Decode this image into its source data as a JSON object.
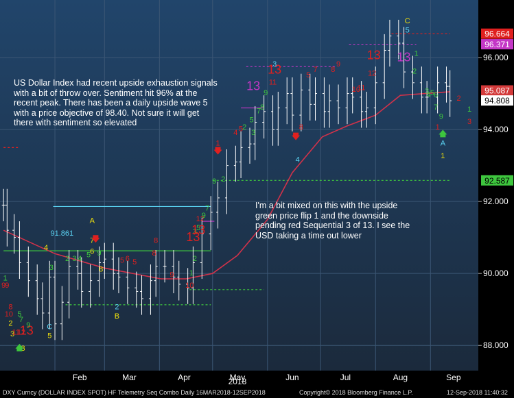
{
  "chart_data": {
    "type": "candlestick",
    "title": "",
    "xlabel": "2018",
    "ylabel": "",
    "ylim": [
      87.3,
      97.6
    ],
    "x_tick_labels": [
      "Feb",
      "Mar",
      "Apr",
      "May",
      "Jun",
      "Jul",
      "Aug",
      "Sep"
    ],
    "y_tick_labels": [
      "88.000",
      "90.000",
      "92.000",
      "94.000",
      "96.000"
    ],
    "y_ticks": [
      88,
      90,
      92,
      94,
      96
    ],
    "colors": {
      "background_top": "#21456b",
      "background_bottom": "#1b2a3c",
      "bars": "#ffffff",
      "moving_average": "#d1324a",
      "grid": "#3b5674"
    },
    "series": [
      {
        "type": "ohlc-bars",
        "x": [
          "2018-01-03",
          "2018-01-05",
          "2018-01-09",
          "2018-01-12",
          "2018-01-17",
          "2018-01-22",
          "2018-01-25",
          "2018-01-29",
          "2018-02-01",
          "2018-02-05",
          "2018-02-09",
          "2018-02-14",
          "2018-02-16",
          "2018-02-21",
          "2018-02-26",
          "2018-03-01",
          "2018-03-06",
          "2018-03-09",
          "2018-03-14",
          "2018-03-19",
          "2018-03-22",
          "2018-03-27",
          "2018-03-30",
          "2018-04-04",
          "2018-04-09",
          "2018-04-12",
          "2018-04-17",
          "2018-04-20",
          "2018-04-25",
          "2018-04-30",
          "2018-05-04",
          "2018-05-09",
          "2018-05-14",
          "2018-05-17",
          "2018-05-22",
          "2018-05-25",
          "2018-05-30",
          "2018-06-04",
          "2018-06-07",
          "2018-06-12",
          "2018-06-15",
          "2018-06-20",
          "2018-06-25",
          "2018-06-28",
          "2018-07-03",
          "2018-07-06",
          "2018-07-11",
          "2018-07-16",
          "2018-07-19",
          "2018-07-24",
          "2018-07-27",
          "2018-08-01",
          "2018-08-06",
          "2018-08-09",
          "2018-08-14",
          "2018-08-17",
          "2018-08-22",
          "2018-08-27",
          "2018-08-30",
          "2018-09-05",
          "2018-09-10",
          "2018-09-12"
        ],
        "close": [
          91.9,
          91.2,
          91.0,
          90.3,
          89.8,
          89.3,
          88.9,
          89.9,
          88.6,
          89.2,
          90.2,
          90.0,
          89.5,
          89.8,
          90.3,
          90.4,
          90.0,
          89.9,
          89.6,
          89.5,
          89.3,
          89.8,
          90.2,
          90.2,
          89.9,
          89.7,
          89.6,
          90.3,
          91.1,
          91.7,
          92.1,
          93.0,
          93.1,
          93.5,
          93.6,
          94.2,
          94.5,
          94.0,
          94.6,
          95.0,
          94.4,
          95.1,
          94.7,
          95.0,
          94.5,
          94.8,
          94.6,
          95.0,
          94.9,
          94.5,
          94.6,
          95.3,
          96.2,
          96.6,
          96.4,
          95.6,
          95.3,
          94.9,
          94.9,
          95.3,
          95.2,
          94.8
        ]
      },
      {
        "name": "",
        "type": "line",
        "x": [
          "2018-01-03",
          "2018-02-01",
          "2018-03-01",
          "2018-04-02",
          "2018-04-16",
          "2018-05-01",
          "2018-05-15",
          "2018-06-01",
          "2018-06-15",
          "2018-07-02",
          "2018-07-16",
          "2018-08-01",
          "2018-08-15",
          "2018-09-12"
        ],
        "values": [
          91.2,
          90.55,
          90.15,
          89.85,
          89.85,
          90.0,
          90.5,
          91.5,
          92.8,
          93.8,
          94.1,
          94.4,
          94.95,
          95.05
        ]
      }
    ],
    "price_labels": [
      {
        "text": "96.664",
        "value": 96.664,
        "bg": "#e0201f",
        "fg": "#ffffff"
      },
      {
        "text": "96.371",
        "value": 96.371,
        "bg": "#c437c6",
        "fg": "#ffffff"
      },
      {
        "text": "95.087",
        "value": 95.087,
        "bg": "#d33a3a",
        "fg": "#ffffff"
      },
      {
        "text": "94.808",
        "value": 94.808,
        "bg": "#ffffff",
        "fg": "#000000"
      },
      {
        "text": "92.587",
        "value": 92.587,
        "bg": "#3ec63e",
        "fg": "#000000"
      }
    ],
    "level_annotations": [
      {
        "text": "91.861",
        "value": 91.861,
        "color": "#5bd3f2"
      }
    ],
    "horizontal_levels": [
      {
        "value": 96.664,
        "from": "2018-08-10",
        "to": "2018-09-12",
        "color": "#e0201f",
        "style": "dashed"
      },
      {
        "value": 96.371,
        "from": "2018-07-17",
        "to": "2018-08-24",
        "color": "#c437c6",
        "style": "dashed"
      },
      {
        "value": 95.75,
        "from": "2018-05-20",
        "to": "2018-07-10",
        "color": "#c437c6",
        "style": "dashed"
      },
      {
        "value": 92.587,
        "from": "2018-05-01",
        "to": "2018-09-12",
        "color": "#3ec63e",
        "style": "dashed"
      },
      {
        "value": 91.861,
        "from": "2018-01-31",
        "to": "2018-04-30",
        "color": "#5bd3f2",
        "style": "solid"
      },
      {
        "value": 91.45,
        "from": "2018-04-25",
        "to": "2018-05-02",
        "color": "#c437c6",
        "style": "solid"
      },
      {
        "value": 90.63,
        "from": "2018-01-03",
        "to": "2018-04-30",
        "color": "#3ec63e",
        "style": "solid"
      },
      {
        "value": 89.55,
        "from": "2018-04-18",
        "to": "2018-05-30",
        "color": "#3ec63e",
        "style": "dashed"
      },
      {
        "value": 89.13,
        "from": "2018-02-07",
        "to": "2018-04-30",
        "color": "#3ec63e",
        "style": "dashed"
      },
      {
        "value": 93.5,
        "from": "2018-01-03",
        "to": "2018-01-12",
        "color": "#e0201f",
        "style": "dashed"
      },
      {
        "value": 94.6,
        "from": "2018-05-17",
        "to": "2018-05-30",
        "color": "#c437c6",
        "style": "solid"
      }
    ],
    "sequential_markers": [
      {
        "x": "2018-01-05",
        "y": 89.6,
        "text": "9",
        "color": "#e0201f"
      },
      {
        "x": "2018-01-07",
        "y": 89.0,
        "text": "8",
        "color": "#e0201f"
      },
      {
        "x": "2018-01-06",
        "y": 88.8,
        "text": "10",
        "color": "#e0201f"
      },
      {
        "x": "2018-01-07",
        "y": 88.55,
        "text": "2",
        "color": "#f2e20a"
      },
      {
        "x": "2018-01-08",
        "y": 88.25,
        "text": "3",
        "color": "#f2e20a"
      },
      {
        "x": "2018-01-10",
        "y": 88.3,
        "text": "11",
        "color": "#e0201f"
      },
      {
        "x": "2018-01-13",
        "y": 88.3,
        "text": "12",
        "color": "#e0201f"
      },
      {
        "x": "2018-01-16",
        "y": 88.3,
        "text": "13",
        "color": "#e0201f"
      },
      {
        "x": "2018-01-14",
        "y": 87.85,
        "text": "3",
        "color": "#f2e20a"
      },
      {
        "x": "2018-01-12",
        "y": 88.8,
        "text": "5",
        "color": "#3ec63e"
      },
      {
        "x": "2018-01-13",
        "y": 88.65,
        "text": "7",
        "color": "#3ec63e"
      },
      {
        "x": "2018-01-17",
        "y": 88.5,
        "text": "9",
        "color": "#3ec63e"
      },
      {
        "x": "2018-01-04",
        "y": 89.8,
        "text": "1",
        "color": "#3ec63e"
      },
      {
        "x": "2018-01-30",
        "y": 90.1,
        "text": "3",
        "color": "#3ec63e"
      },
      {
        "x": "2018-01-27",
        "y": 90.65,
        "text": "4",
        "color": "#f2e20a"
      },
      {
        "x": "2018-02-08",
        "y": 90.35,
        "text": "2",
        "color": "#3ec63e"
      },
      {
        "x": "2018-02-12",
        "y": 90.35,
        "text": "3",
        "color": "#3ec63e"
      },
      {
        "x": "2018-02-15",
        "y": 90.35,
        "text": "4",
        "color": "#3ec63e"
      },
      {
        "x": "2018-02-20",
        "y": 90.45,
        "text": "5",
        "color": "#3ec63e"
      },
      {
        "x": "2018-02-22",
        "y": 90.55,
        "text": "6",
        "color": "#f2e20a"
      },
      {
        "x": "2018-02-22",
        "y": 91.4,
        "text": "A",
        "color": "#f2e20a"
      },
      {
        "x": "2018-02-22",
        "y": 90.85,
        "text": "7",
        "color": "#f2e20a"
      },
      {
        "x": "2018-02-26",
        "y": 90.5,
        "text": "9",
        "color": "#3ec63e"
      },
      {
        "x": "2018-02-27",
        "y": 90.05,
        "text": "8",
        "color": "#f2e20a"
      },
      {
        "x": "2018-03-11",
        "y": 90.3,
        "text": "5",
        "color": "#e0201f"
      },
      {
        "x": "2018-03-14",
        "y": 90.35,
        "text": "6",
        "color": "#e0201f"
      },
      {
        "x": "2018-03-18",
        "y": 90.25,
        "text": "5",
        "color": "#e0201f"
      },
      {
        "x": "2018-03-29",
        "y": 90.5,
        "text": "8",
        "color": "#e0201f"
      },
      {
        "x": "2018-03-30",
        "y": 90.85,
        "text": "8",
        "color": "#e0201f"
      },
      {
        "x": "2018-04-08",
        "y": 89.9,
        "text": "9",
        "color": "#e0201f"
      },
      {
        "x": "2018-04-19",
        "y": 89.95,
        "text": "1",
        "color": "#3ec63e"
      },
      {
        "x": "2018-04-21",
        "y": 90.35,
        "text": "2",
        "color": "#3ec63e"
      },
      {
        "x": "2018-04-18",
        "y": 89.6,
        "text": "10",
        "color": "#e0201f"
      },
      {
        "x": "2018-04-20",
        "y": 90.9,
        "text": "13",
        "color": "#e0201f"
      },
      {
        "x": "2018-04-21",
        "y": 91.1,
        "text": "3",
        "color": "#3ec63e"
      },
      {
        "x": "2018-04-23",
        "y": 91.2,
        "text": "5",
        "color": "#3ec63e"
      },
      {
        "x": "2018-04-24",
        "y": 91.45,
        "text": "12",
        "color": "#e0201f"
      },
      {
        "x": "2018-04-26",
        "y": 91.55,
        "text": "9",
        "color": "#3ec63e"
      },
      {
        "x": "2018-04-28",
        "y": 91.75,
        "text": "7",
        "color": "#3ec63e"
      },
      {
        "x": "2018-04-23",
        "y": 91.1,
        "text": "13",
        "color": "#e0201f"
      },
      {
        "x": "2018-05-02",
        "y": 92.5,
        "text": "9",
        "color": "#3ec63e"
      },
      {
        "x": "2018-05-07",
        "y": 92.55,
        "text": "2",
        "color": "#3ec63e"
      },
      {
        "x": "2018-05-04",
        "y": 93.55,
        "text": "1",
        "color": "#e0201f"
      },
      {
        "x": "2018-05-14",
        "y": 93.85,
        "text": "4",
        "color": "#e0201f"
      },
      {
        "x": "2018-05-17",
        "y": 93.95,
        "text": "5",
        "color": "#e0201f"
      },
      {
        "x": "2018-05-19",
        "y": 94.0,
        "text": "2",
        "color": "#3ec63e"
      },
      {
        "x": "2018-05-24",
        "y": 93.85,
        "text": "3",
        "color": "#3ec63e"
      },
      {
        "x": "2018-05-23",
        "y": 94.2,
        "text": "5",
        "color": "#3ec63e"
      },
      {
        "x": "2018-05-27",
        "y": 94.45,
        "text": "7",
        "color": "#3ec63e"
      },
      {
        "x": "2018-05-29",
        "y": 94.55,
        "text": "8",
        "color": "#3ec63e"
      },
      {
        "x": "2018-05-31",
        "y": 94.95,
        "text": "9",
        "color": "#3ec63e"
      },
      {
        "x": "2018-05-24",
        "y": 95.1,
        "text": "13",
        "color": "#c437c6"
      },
      {
        "x": "2018-06-04",
        "y": 95.25,
        "text": "11",
        "color": "#e0201f"
      },
      {
        "x": "2018-06-05",
        "y": 95.55,
        "text": "13",
        "color": "#e0201f"
      },
      {
        "x": "2018-06-05",
        "y": 95.75,
        "text": "3",
        "color": "#5bd3f2"
      },
      {
        "x": "2018-06-18",
        "y": 93.1,
        "text": "4",
        "color": "#5bd3f2"
      },
      {
        "x": "2018-06-20",
        "y": 94.0,
        "text": "8",
        "color": "#e0201f"
      },
      {
        "x": "2018-06-24",
        "y": 95.45,
        "text": "5",
        "color": "#e0201f"
      },
      {
        "x": "2018-06-28",
        "y": 95.6,
        "text": "7",
        "color": "#e0201f"
      },
      {
        "x": "2018-07-08",
        "y": 95.6,
        "text": "8",
        "color": "#e0201f"
      },
      {
        "x": "2018-07-11",
        "y": 95.75,
        "text": "9",
        "color": "#e0201f"
      },
      {
        "x": "2018-07-21",
        "y": 95.05,
        "text": "10",
        "color": "#e0201f"
      },
      {
        "x": "2018-07-24",
        "y": 95.1,
        "text": "11",
        "color": "#e0201f"
      },
      {
        "x": "2018-07-30",
        "y": 95.5,
        "text": "12",
        "color": "#e0201f"
      },
      {
        "x": "2018-07-31",
        "y": 95.95,
        "text": "13",
        "color": "#e0201f"
      },
      {
        "x": "2018-08-17",
        "y": 95.9,
        "text": "13",
        "color": "#c437c6"
      },
      {
        "x": "2018-08-19",
        "y": 96.95,
        "text": "C",
        "color": "#f2e20a"
      },
      {
        "x": "2018-08-19",
        "y": 96.7,
        "text": "5",
        "color": "#5bd3f2"
      },
      {
        "x": "2018-08-23",
        "y": 95.55,
        "text": "2",
        "color": "#3ec63e"
      },
      {
        "x": "2018-08-24",
        "y": 96.05,
        "text": "1",
        "color": "#3ec63e"
      },
      {
        "x": "2018-08-30",
        "y": 95.0,
        "text": "3",
        "color": "#3ec63e"
      },
      {
        "x": "2018-09-02",
        "y": 94.95,
        "text": "5",
        "color": "#3ec63e"
      },
      {
        "x": "2018-08-31",
        "y": 94.9,
        "text": "4",
        "color": "#3ec63e"
      },
      {
        "x": "2018-09-04",
        "y": 94.9,
        "text": "6",
        "color": "#3ec63e"
      },
      {
        "x": "2018-09-04",
        "y": 94.55,
        "text": "7",
        "color": "#3ec63e"
      },
      {
        "x": "2018-09-07",
        "y": 94.3,
        "text": "9",
        "color": "#3ec63e"
      },
      {
        "x": "2018-09-05",
        "y": 94.0,
        "text": "1",
        "color": "#e0201f"
      },
      {
        "x": "2018-09-08",
        "y": 93.55,
        "text": "A",
        "color": "#5bd3f2"
      },
      {
        "x": "2018-09-08",
        "y": 93.2,
        "text": "1",
        "color": "#f2e20a"
      },
      {
        "x": "2018-09-17",
        "y": 94.8,
        "text": "2",
        "color": "#e0201f"
      },
      {
        "x": "2018-09-23",
        "y": 94.5,
        "text": "1",
        "color": "#3ec63e"
      },
      {
        "x": "2018-09-23",
        "y": 94.15,
        "text": "3",
        "color": "#e0201f"
      },
      {
        "x": "2018-01-29",
        "y": 88.45,
        "text": "C",
        "color": "#5bd3f2"
      },
      {
        "x": "2018-01-29",
        "y": 88.2,
        "text": "5",
        "color": "#f2e20a"
      },
      {
        "x": "2018-03-08",
        "y": 89.0,
        "text": "2",
        "color": "#5bd3f2"
      },
      {
        "x": "2018-03-08",
        "y": 88.75,
        "text": "B",
        "color": "#f2e20a"
      },
      {
        "x": "2018-02-05",
        "y": 91.05,
        "text": "91.861",
        "color": "#5bd3f2"
      },
      {
        "x": "2018-01-03",
        "y": 89.6,
        "text": "9",
        "color": "#e0201f"
      }
    ],
    "arrows": [
      {
        "x": "2018-05-04",
        "y": 93.4,
        "direction": "down",
        "color": "#e0201f"
      },
      {
        "x": "2018-02-24",
        "y": 90.95,
        "direction": "down",
        "color": "#e0201f"
      },
      {
        "x": "2018-06-17",
        "y": 93.8,
        "direction": "down",
        "color": "#e0201f"
      },
      {
        "x": "2018-09-08",
        "y": 93.9,
        "direction": "up",
        "color": "#3ec63e"
      },
      {
        "x": "2018-01-12",
        "y": 87.95,
        "direction": "up",
        "color": "#3ec63e"
      }
    ],
    "notes": [
      "US Dollar Index had recent upside exhaustion signals with a bit of throw over.  Sentiment hit 96% at the recent peak.  There has been a daily upside wave 5 with a price objective of 98.40.  Not sure it will get there with sentiment so elevated",
      "I'm a bit mixed on this with the upside green price flip 1 and the downside pending red Sequential 3 of 13.  I see the USD taking a time out lower"
    ]
  },
  "footer": {
    "left": "DXY Curncy (DOLLAR INDEX SPOT) HF Telemetry Seq Combo  Daily 16MAR2018-12SEP2018",
    "center": "Copyright© 2018 Bloomberg Finance L.P.",
    "right": "12-Sep-2018 11:40:32"
  }
}
